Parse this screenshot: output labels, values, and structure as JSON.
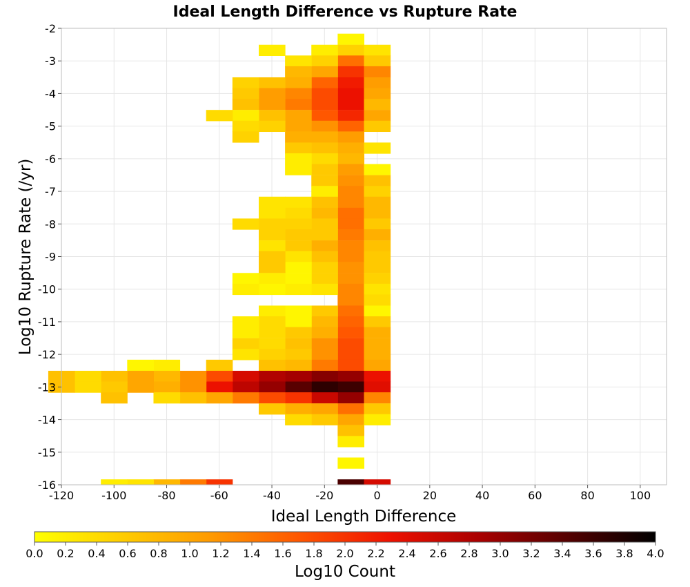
{
  "chart_data": {
    "type": "heatmap",
    "title": "Ideal Length Difference vs Rupture Rate",
    "xlabel": "Ideal Length Difference",
    "ylabel": "Log10 Rupture Rate (/yr)",
    "xlim": [
      -120,
      110
    ],
    "ylim": [
      -16,
      -2
    ],
    "x_ticks": [
      -120,
      -100,
      -80,
      -60,
      -40,
      -20,
      0,
      20,
      40,
      60,
      80,
      100
    ],
    "y_ticks": [
      -2,
      -3,
      -4,
      -5,
      -6,
      -7,
      -8,
      -9,
      -10,
      -11,
      -12,
      -13,
      -14,
      -15,
      -16
    ],
    "grid": true,
    "x_bin_width": 10,
    "y_bin_width": 0.3333,
    "colorbar": {
      "label": "Log10 Count",
      "range": [
        0.0,
        4.0
      ],
      "ticks": [
        "0.0",
        "0.2",
        "0.4",
        "0.6",
        "0.8",
        "1.0",
        "1.2",
        "1.4",
        "1.6",
        "1.8",
        "2.0",
        "2.2",
        "2.4",
        "2.6",
        "2.8",
        "3.0",
        "3.2",
        "3.4",
        "3.6",
        "3.8",
        "4.0"
      ],
      "placement": "bottom",
      "colormap": [
        "#ffff00",
        "#ffcc00",
        "#ff9900",
        "#ff5500",
        "#ee1100",
        "#aa0000",
        "#550000",
        "#000000"
      ]
    },
    "columns": [
      {
        "x": -10,
        "cells": [
          [
            -2.33,
            0.1
          ],
          [
            -2.67,
            0.5
          ],
          [
            -3.0,
            1.5
          ],
          [
            -3.33,
            2.0
          ],
          [
            -3.67,
            2.2
          ],
          [
            -4.0,
            2.3
          ],
          [
            -4.33,
            2.3
          ],
          [
            -4.67,
            2.1
          ],
          [
            -5.0,
            1.6
          ],
          [
            -5.33,
            1.1
          ],
          [
            -5.67,
            0.9
          ],
          [
            -6.0,
            0.8
          ],
          [
            -6.33,
            1.1
          ],
          [
            -6.67,
            1.2
          ],
          [
            -7.0,
            1.3
          ],
          [
            -7.33,
            1.3
          ],
          [
            -7.67,
            1.5
          ],
          [
            -8.0,
            1.5
          ],
          [
            -8.33,
            1.4
          ],
          [
            -8.67,
            1.3
          ],
          [
            -9.0,
            1.3
          ],
          [
            -9.33,
            1.2
          ],
          [
            -9.67,
            1.2
          ],
          [
            -10.0,
            1.3
          ],
          [
            -10.33,
            1.3
          ],
          [
            -10.67,
            1.5
          ],
          [
            -11.0,
            1.6
          ],
          [
            -11.33,
            1.7
          ],
          [
            -11.67,
            1.8
          ],
          [
            -12.0,
            1.8
          ],
          [
            -12.33,
            1.8
          ],
          [
            -12.67,
            3.0
          ],
          [
            -13.0,
            3.6
          ],
          [
            -13.33,
            3.0
          ],
          [
            -13.67,
            1.5
          ],
          [
            -14.0,
            1.0
          ],
          [
            -14.33,
            0.7
          ],
          [
            -14.67,
            0.2
          ],
          [
            -15.33,
            0.1
          ],
          [
            -16.0,
            3.5
          ]
        ]
      },
      {
        "x": 0,
        "cells": [
          [
            -2.67,
            0.3
          ],
          [
            -3.0,
            0.6
          ],
          [
            -3.33,
            1.3
          ],
          [
            -3.67,
            1.1
          ],
          [
            -4.0,
            1.0
          ],
          [
            -4.33,
            0.8
          ],
          [
            -4.67,
            1.0
          ],
          [
            -5.0,
            0.6
          ],
          [
            -5.67,
            0.3
          ],
          [
            -6.33,
            0.1
          ],
          [
            -6.67,
            0.7
          ],
          [
            -7.0,
            0.5
          ],
          [
            -7.33,
            0.8
          ],
          [
            -7.67,
            0.8
          ],
          [
            -8.0,
            0.6
          ],
          [
            -8.33,
            0.9
          ],
          [
            -8.67,
            0.7
          ],
          [
            -9.0,
            0.6
          ],
          [
            -9.33,
            0.6
          ],
          [
            -9.67,
            0.5
          ],
          [
            -10.0,
            0.3
          ],
          [
            -10.33,
            0.4
          ],
          [
            -10.67,
            0.1
          ],
          [
            -11.0,
            0.6
          ],
          [
            -11.33,
            0.9
          ],
          [
            -11.67,
            0.9
          ],
          [
            -12.0,
            0.9
          ],
          [
            -12.33,
            1.0
          ],
          [
            -12.67,
            2.3
          ],
          [
            -13.0,
            2.4
          ],
          [
            -13.33,
            1.3
          ],
          [
            -13.67,
            0.6
          ],
          [
            -14.0,
            0.2
          ],
          [
            -16.0,
            2.5
          ]
        ]
      },
      {
        "x": -20,
        "cells": [
          [
            -2.67,
            0.2
          ],
          [
            -3.0,
            0.5
          ],
          [
            -3.33,
            1.0
          ],
          [
            -3.67,
            1.6
          ],
          [
            -4.0,
            1.8
          ],
          [
            -4.33,
            1.8
          ],
          [
            -4.67,
            1.7
          ],
          [
            -5.0,
            1.2
          ],
          [
            -5.33,
            0.9
          ],
          [
            -5.67,
            0.7
          ],
          [
            -6.0,
            0.4
          ],
          [
            -6.33,
            0.6
          ],
          [
            -6.67,
            0.6
          ],
          [
            -7.0,
            0.2
          ],
          [
            -7.33,
            0.7
          ],
          [
            -7.67,
            0.8
          ],
          [
            -8.0,
            0.6
          ],
          [
            -8.33,
            0.6
          ],
          [
            -8.67,
            0.9
          ],
          [
            -9.0,
            0.7
          ],
          [
            -9.33,
            0.5
          ],
          [
            -9.67,
            0.5
          ],
          [
            -10.0,
            0.3
          ],
          [
            -10.67,
            0.6
          ],
          [
            -11.0,
            0.8
          ],
          [
            -11.33,
            0.9
          ],
          [
            -11.67,
            1.2
          ],
          [
            -12.0,
            1.2
          ],
          [
            -12.33,
            1.4
          ],
          [
            -12.67,
            3.1
          ],
          [
            -13.0,
            3.7
          ],
          [
            -13.33,
            2.6
          ],
          [
            -13.67,
            1.0
          ],
          [
            -14.0,
            0.6
          ]
        ]
      },
      {
        "x": -30,
        "cells": [
          [
            -3.0,
            0.3
          ],
          [
            -3.33,
            0.8
          ],
          [
            -3.67,
            0.9
          ],
          [
            -4.0,
            1.3
          ],
          [
            -4.33,
            1.4
          ],
          [
            -4.67,
            1.0
          ],
          [
            -5.0,
            1.0
          ],
          [
            -5.33,
            0.9
          ],
          [
            -5.67,
            0.6
          ],
          [
            -6.0,
            0.2
          ],
          [
            -6.33,
            0.2
          ],
          [
            -7.33,
            0.3
          ],
          [
            -7.67,
            0.4
          ],
          [
            -8.0,
            0.5
          ],
          [
            -8.33,
            0.6
          ],
          [
            -8.67,
            0.6
          ],
          [
            -9.0,
            0.3
          ],
          [
            -9.33,
            0.1
          ],
          [
            -9.67,
            0.1
          ],
          [
            -10.0,
            0.2
          ],
          [
            -10.67,
            0.1
          ],
          [
            -11.0,
            0.1
          ],
          [
            -11.33,
            0.6
          ],
          [
            -11.67,
            0.7
          ],
          [
            -12.0,
            0.6
          ],
          [
            -12.33,
            0.8
          ],
          [
            -12.67,
            2.9
          ],
          [
            -13.0,
            3.4
          ],
          [
            -13.33,
            2.0
          ],
          [
            -13.67,
            0.9
          ],
          [
            -14.0,
            0.4
          ]
        ]
      },
      {
        "x": -40,
        "cells": [
          [
            -2.67,
            0.2
          ],
          [
            -3.67,
            0.7
          ],
          [
            -4.0,
            1.1
          ],
          [
            -4.33,
            1.1
          ],
          [
            -4.67,
            0.7
          ],
          [
            -5.0,
            0.5
          ],
          [
            -7.33,
            0.3
          ],
          [
            -7.67,
            0.3
          ],
          [
            -8.0,
            0.5
          ],
          [
            -8.33,
            0.5
          ],
          [
            -8.67,
            0.3
          ],
          [
            -9.0,
            0.6
          ],
          [
            -9.33,
            0.6
          ],
          [
            -9.67,
            0.2
          ],
          [
            -10.0,
            0.1
          ],
          [
            -10.67,
            0.2
          ],
          [
            -11.0,
            0.4
          ],
          [
            -11.33,
            0.4
          ],
          [
            -11.67,
            0.4
          ],
          [
            -12.0,
            0.5
          ],
          [
            -12.33,
            0.7
          ],
          [
            -12.67,
            2.8
          ],
          [
            -13.0,
            3.0
          ],
          [
            -13.33,
            1.8
          ],
          [
            -13.67,
            0.6
          ]
        ]
      },
      {
        "x": -50,
        "cells": [
          [
            -3.67,
            0.5
          ],
          [
            -4.0,
            0.6
          ],
          [
            -4.33,
            0.7
          ],
          [
            -4.67,
            0.2
          ],
          [
            -5.0,
            0.4
          ],
          [
            -5.33,
            0.5
          ],
          [
            -8.0,
            0.4
          ],
          [
            -9.67,
            0.1
          ],
          [
            -10.0,
            0.2
          ],
          [
            -11.0,
            0.2
          ],
          [
            -11.33,
            0.2
          ],
          [
            -11.67,
            0.5
          ],
          [
            -12.0,
            0.3
          ],
          [
            -12.67,
            2.5
          ],
          [
            -13.0,
            2.7
          ],
          [
            -13.33,
            1.4
          ]
        ]
      },
      {
        "x": -60,
        "cells": [
          [
            -4.67,
            0.4
          ],
          [
            -12.33,
            0.6
          ],
          [
            -12.67,
            1.8
          ],
          [
            -13.0,
            2.3
          ],
          [
            -13.33,
            1.0
          ],
          [
            -16.0,
            2.0
          ]
        ]
      },
      {
        "x": -70,
        "cells": [
          [
            -12.67,
            1.2
          ],
          [
            -13.0,
            1.2
          ],
          [
            -13.33,
            0.7
          ],
          [
            -16.0,
            1.4
          ]
        ]
      },
      {
        "x": -80,
        "cells": [
          [
            -12.33,
            0.2
          ],
          [
            -12.67,
            0.8
          ],
          [
            -13.0,
            0.9
          ],
          [
            -13.33,
            0.4
          ],
          [
            -16.0,
            0.8
          ]
        ]
      },
      {
        "x": -90,
        "cells": [
          [
            -12.33,
            0.1
          ],
          [
            -12.67,
            1.0
          ],
          [
            -13.0,
            1.0
          ],
          [
            -16.0,
            0.3
          ]
        ]
      },
      {
        "x": -100,
        "cells": [
          [
            -12.67,
            0.7
          ],
          [
            -13.0,
            0.6
          ],
          [
            -13.33,
            0.7
          ],
          [
            -16.0,
            0.2
          ]
        ]
      },
      {
        "x": -110,
        "cells": [
          [
            -12.67,
            0.4
          ],
          [
            -13.0,
            0.4
          ]
        ]
      },
      {
        "x": -120,
        "cells": [
          [
            -12.67,
            0.7
          ],
          [
            -13.0,
            0.7
          ]
        ]
      }
    ]
  }
}
